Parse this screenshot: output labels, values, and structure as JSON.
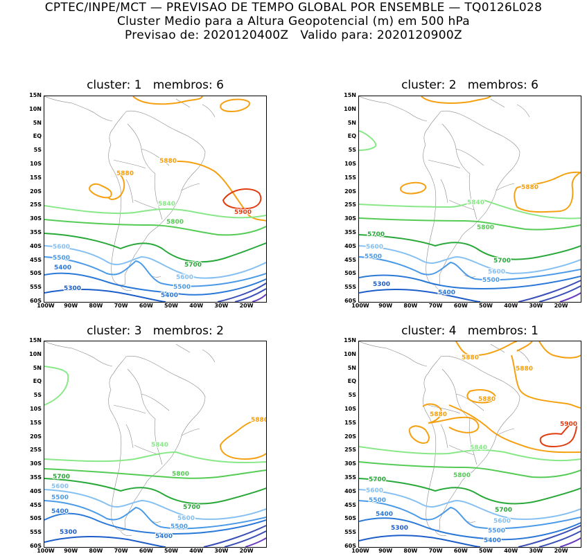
{
  "header": {
    "line1": "CPTEC/INPE/MCT — PREVISAO DE TEMPO GLOBAL POR ENSEMBLE — TQ0126L028",
    "line2": "Cluster Medio para a Altura Geopotencial (m) em 500 hPa",
    "line3": "Previsao de: 2020120400Z   Valido para: 2020120900Z"
  },
  "axes": {
    "lat_labels": [
      "15N",
      "10N",
      "5N",
      "EQ",
      "5S",
      "10S",
      "15S",
      "20S",
      "25S",
      "30S",
      "35S",
      "40S",
      "45S",
      "50S",
      "55S",
      "60S"
    ],
    "lon_labels": [
      "100W",
      "90W",
      "80W",
      "70W",
      "60W",
      "50W",
      "40W",
      "30W",
      "20W"
    ]
  },
  "colors": {
    "c5300": "#1c5dc9",
    "c5400": "#2a78d8",
    "c5500": "#4a9ae8",
    "c5600": "#86c0f2",
    "c5700": "#28a838",
    "c5800": "#54cc54",
    "c5840": "#88e888",
    "c5880": "#f5a010",
    "c5900": "#e03c10",
    "deep": "#3a4fb8",
    "violet": "#6a3cc0",
    "coast": "#888888"
  },
  "panels": [
    {
      "title": "cluster: 1   membros: 6",
      "labels": {
        "l5880a": "5880",
        "l5880b": "5880",
        "l5900": "5900",
        "l5840": "5840",
        "l5800": "5800",
        "l5700": "5700",
        "l5600a": "5600",
        "l5600b": "5600",
        "l5500a": "5500",
        "l5500b": "5500",
        "l5400a": "5400",
        "l5400b": "5400",
        "l5300": "5300"
      }
    },
    {
      "title": "cluster: 2   membros: 6",
      "labels": {
        "l5880a": "5880",
        "l5840": "5840",
        "l5800": "5800",
        "l5700a": "5700",
        "l5700b": "5700",
        "l5600a": "5600",
        "l5600b": "5600",
        "l5500a": "5500",
        "l5500b": "5500",
        "l5400": "5400",
        "l5300": "5300"
      }
    },
    {
      "title": "cluster: 3   membros: 2",
      "labels": {
        "l5880a": "5880",
        "l5840": "5840",
        "l5800": "5800",
        "l5700a": "5700",
        "l5700b": "5700",
        "l5600a": "5600",
        "l5600b": "5600",
        "l5500a": "5500",
        "l5500b": "5500",
        "l5400a": "5400",
        "l5400b": "5400",
        "l5300": "5300"
      }
    },
    {
      "title": "cluster: 4   membros: 1",
      "labels": {
        "l5880a": "5880",
        "l5880b": "5880",
        "l5880c": "5880",
        "l5880d": "5880",
        "l5900": "5900",
        "l5840": "5840",
        "l5800": "5800",
        "l5700a": "5700",
        "l5700b": "5700",
        "l5600a": "5600",
        "l5600b": "5600",
        "l5500a": "5500",
        "l5500b": "5500",
        "l5400a": "5400",
        "l5400b": "5400",
        "l5300": "5300"
      }
    }
  ]
}
